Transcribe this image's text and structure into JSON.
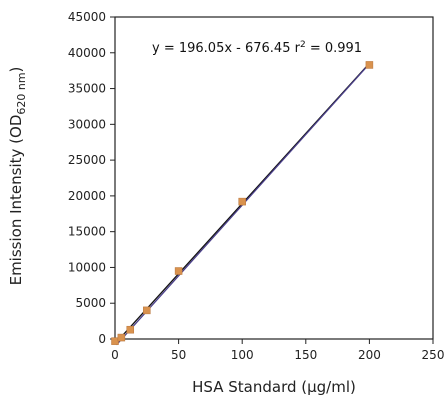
{
  "chart_data": {
    "type": "scatter",
    "xlabel": "HSA Standard (µg/ml)",
    "ylabel_main": "Emission Intensity (OD",
    "ylabel_sub": "620 nm",
    "ylabel_close": ")",
    "xlim": [
      0,
      250
    ],
    "ylim": [
      0,
      45000
    ],
    "x_ticks": [
      0,
      50,
      100,
      150,
      200,
      250
    ],
    "y_ticks": [
      0,
      5000,
      10000,
      15000,
      20000,
      25000,
      30000,
      35000,
      40000,
      45000
    ],
    "grid": false,
    "points": {
      "x": [
        0,
        5,
        12,
        25,
        50,
        100,
        200
      ],
      "y": [
        -300,
        200,
        1300,
        4000,
        9500,
        19200,
        38300
      ],
      "color": "#d9924e"
    },
    "fit_line": {
      "equation_text": "y = 196.05x - 676.45 r",
      "r_sup": "2",
      "r_value_text": " = 0.991",
      "slope": 196.05,
      "intercept": -676.45,
      "colors": [
        "#111111",
        "#4a3f8a"
      ]
    }
  }
}
